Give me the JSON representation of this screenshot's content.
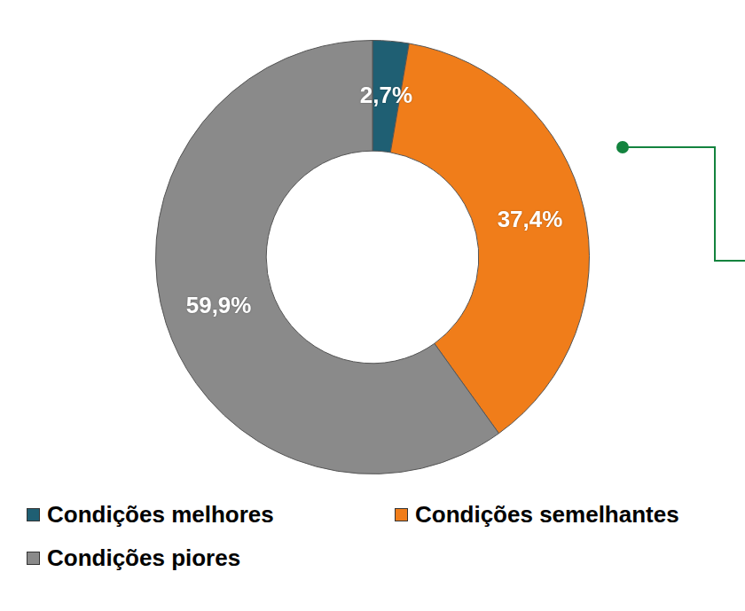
{
  "chart_data": {
    "type": "doughnut",
    "categories": [
      "Condições melhores",
      "Condições semelhantes",
      "Condições piores"
    ],
    "values": [
      2.7,
      37.4,
      59.9
    ],
    "value_labels": [
      "2,7%",
      "37,4%",
      "59,9%"
    ],
    "colors": [
      "#1f5f73",
      "#f07d1a",
      "#8a8a8a"
    ],
    "data_labels": true,
    "legend": "bottom"
  }
}
